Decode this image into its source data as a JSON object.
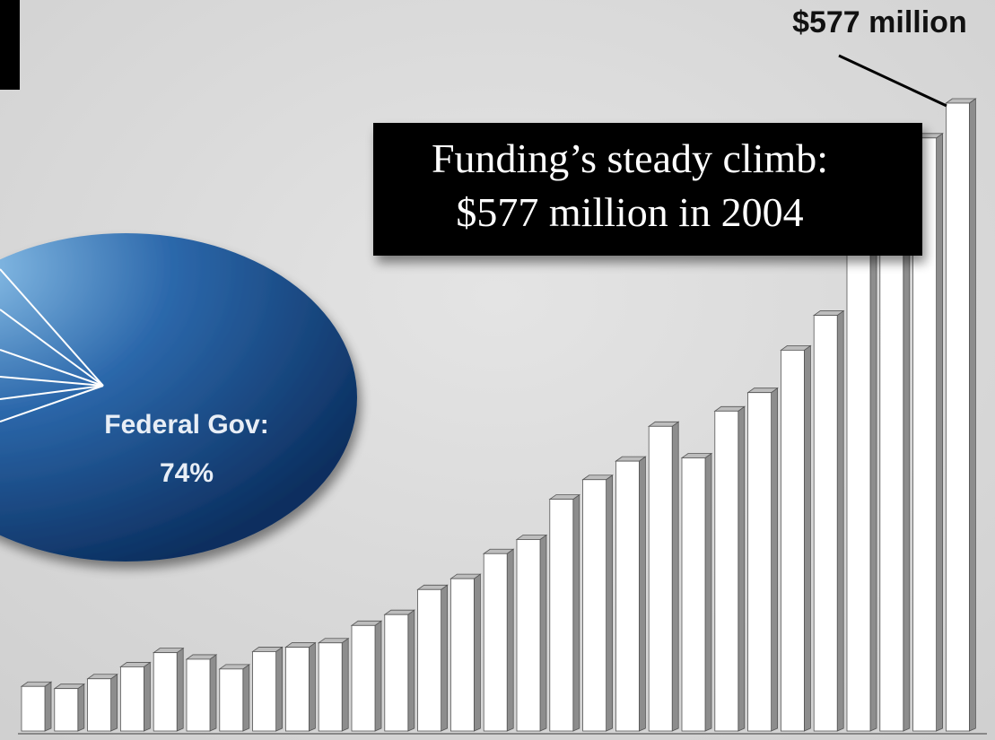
{
  "chart_data": [
    {
      "type": "bar",
      "annotation": [
        "Funding’s steady climb:",
        "$577 million in 2004"
      ],
      "values": [
        41,
        39,
        48,
        59,
        72,
        66,
        57,
        73,
        77,
        81,
        97,
        107,
        130,
        140,
        163,
        176,
        213,
        231,
        248,
        280,
        251,
        294,
        311,
        350,
        382,
        444,
        494,
        545,
        577
      ],
      "value_labels": [
        null,
        null,
        null,
        null,
        null,
        null,
        null,
        null,
        null,
        null,
        null,
        null,
        null,
        null,
        null,
        null,
        null,
        null,
        null,
        null,
        null,
        null,
        null,
        null,
        null,
        null,
        null,
        null,
        "$577 million"
      ],
      "color": "#ffffff"
    },
    {
      "type": "pie",
      "labels": [
        "Federal Gov:"
      ],
      "values": [
        74
      ],
      "value_labels": [
        "74%"
      ],
      "color": "#1d5294"
    }
  ]
}
